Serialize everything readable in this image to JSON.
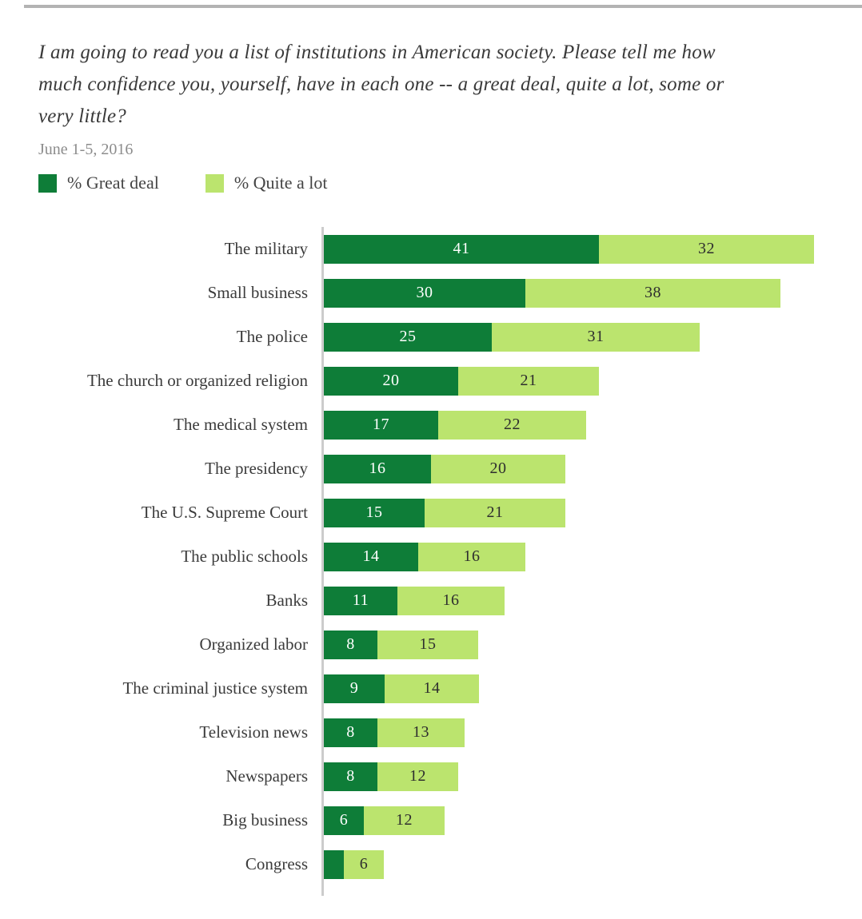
{
  "header": {
    "title_lines": [
      "I am going to read you a list of institutions in American society. Please tell me how",
      "much confidence you, yourself, have in each one -- a great deal, quite a lot, some or",
      "very little?"
    ],
    "subtitle": "June 1-5, 2016"
  },
  "legend": {
    "items": [
      {
        "label": "% Great deal",
        "color": "#0e7d38"
      },
      {
        "label": "% Quite a lot",
        "color": "#bbe46e"
      }
    ]
  },
  "chart_data": {
    "type": "bar",
    "orientation": "horizontal",
    "stacked": true,
    "title": "I am going to read you a list of institutions in American society. Please tell me how much confidence you, yourself, have in each one -- a great deal, quite a lot, some or very little?",
    "subtitle": "June 1-5, 2016",
    "legend_position": "top",
    "grid": false,
    "value_axis_range": [
      0,
      80
    ],
    "categories": [
      "The military",
      "Small business",
      "The police",
      "The church or organized religion",
      "The medical system",
      "The presidency",
      "The U.S. Supreme Court",
      "The public schools",
      "Banks",
      "Organized labor",
      "The criminal justice system",
      "Television news",
      "Newspapers",
      "Big business",
      "Congress"
    ],
    "series": [
      {
        "name": "% Great deal",
        "color": "#0e7d38",
        "label_color": "#ffffff",
        "values": [
          41,
          30,
          25,
          20,
          17,
          16,
          15,
          14,
          11,
          8,
          9,
          8,
          8,
          6,
          3
        ]
      },
      {
        "name": "% Quite a lot",
        "color": "#bbe46e",
        "label_color": "#2e2e2e",
        "values": [
          32,
          38,
          31,
          21,
          22,
          20,
          21,
          16,
          16,
          15,
          14,
          13,
          12,
          12,
          6
        ]
      }
    ]
  },
  "style_colors": {
    "top_rule": "#b3b3b3",
    "axis_line": "#cccccc"
  }
}
